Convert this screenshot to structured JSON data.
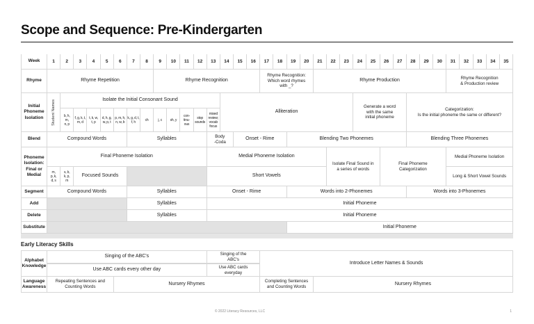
{
  "page": {
    "title": "Scope and Sequence: Pre-Kindergarten",
    "section2_header": "Early Literacy Skills"
  },
  "colors": {
    "text": "#1b1b1b",
    "grid_line": "#d7d7d7",
    "shaded_cell": "#e2e2e2"
  },
  "weeks": [
    "1",
    "2",
    "3",
    "4",
    "5",
    "6",
    "7",
    "8",
    "9",
    "10",
    "11",
    "12",
    "13",
    "14",
    "15",
    "16",
    "17",
    "18",
    "19",
    "20",
    "21",
    "22",
    "23",
    "24",
    "25",
    "26",
    "27",
    "28",
    "29",
    "30",
    "31",
    "32",
    "33",
    "34",
    "35"
  ],
  "table": {
    "week": {
      "label": "Week"
    },
    "rhyme": {
      "label": "Rhyme",
      "repetition": "Rhyme Repetition",
      "recognition": "Rhyme Recognition",
      "which_word": "Rhyme Recognition:\nWhich word rhymes\nwith _?",
      "production": "Rhyme Production",
      "review": "Rhyme Recognition\n& Production review"
    },
    "initial_phoneme_isolation": {
      "label": "Initial\nPhoneme\nIsolation",
      "student_names": "Student Names",
      "isolate_header": "Isolate the Initial Consonant Sound",
      "letter_cells": [
        "b, h,\nm,\nn, p",
        "f, g, k, t,\nm, d",
        "t, k, w,\nt, p",
        "d, h, g,\nw, p, t",
        "p, m, h,\nn, w, b",
        "k, g, d, t,\nf, h",
        "ch",
        "j, c",
        "sh, y",
        "con-\ntinu-\nous",
        "stop\nsounds",
        "mixed\nreview;\nvocab\nfocus"
      ],
      "alliteration": "Alliteration",
      "generate": "Generate a word\nwith the same\ninitial phoneme",
      "categorization": "Categorization:\nIs the initial phoneme the same or different?"
    },
    "blend": {
      "label": "Blend",
      "compound": "Compound Words",
      "syllables": "Syllables",
      "body_coda": "Body\n-Coda",
      "onset_rime": "Onset - Rime",
      "two_phonemes": "Blending Two Phonemes",
      "three_phonemes": "Blending Three Phonemes"
    },
    "phoneme_isolation": {
      "label": "Phoneme\nIsolation:\nFinal or\nMedial",
      "final_isolation": "Final Phoneme Isolation",
      "medial_isolation": "Medial Phoneme Isolation",
      "letters_1": "m,\np, k,\nd, s",
      "letters_2": "s, b,\nk, p,\nm",
      "focused_sounds": "Focused Sounds",
      "short_vowels": "Short Vowels",
      "isolate_final": "Isolate Final Sound in\na series of words",
      "final_categorization": "Final Phoneme\nCategorization",
      "medial_isolation_2": "Medial Phoneme Isolation",
      "long_short_vowels": "Long & Short Vowel Sounds"
    },
    "segment": {
      "label": "Segment",
      "compound": "Compound Words",
      "syllables": "Syllables",
      "onset_rime": "Onset - Rime",
      "two_phonemes": "Words into 2-Phonemes",
      "three_phonemes": "Words into 3-Phonemes"
    },
    "add": {
      "label": "Add",
      "syllables": "Syllables",
      "initial_phoneme": "Initial Phoneme"
    },
    "delete": {
      "label": "Delete",
      "syllables": "Syllables",
      "initial_phoneme": "Initial Phoneme"
    },
    "substitute": {
      "label": "Substitute",
      "initial_phoneme": "Initial Phoneme"
    },
    "alphabet_knowledge": {
      "label": "Alphabet\nKnowledge",
      "singing_1": "Singing of the ABC's",
      "singing_2": "Singing of the\nABC's",
      "cards_1": "Use ABC cards every other day",
      "cards_2": "Use ABC cards\neveryday",
      "introduce": "Introduce Letter Names & Sounds"
    },
    "language_awareness": {
      "label": "Language\nAwareness",
      "repeating": "Repeating Sentences and\nCounting Words",
      "nursery_1": "Nursery Rhymes",
      "completing": "Completing Sentences\nand Counting Words",
      "nursery_2": "Nursery Rhymes"
    }
  },
  "footer": {
    "copyright": "© 2022 Literacy Resources, LLC",
    "page_number": "1"
  }
}
